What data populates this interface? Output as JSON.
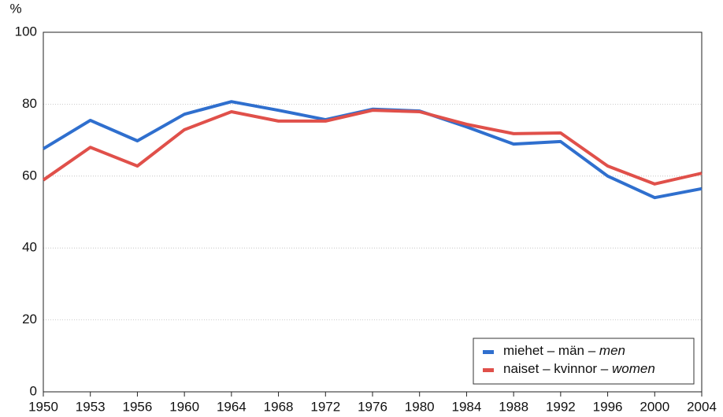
{
  "chart_data": {
    "type": "line",
    "y_label": "%",
    "categories": [
      "1950",
      "1953",
      "1956",
      "1960",
      "1964",
      "1968",
      "1972",
      "1976",
      "1980",
      "1984",
      "1988",
      "1992",
      "1996",
      "2000",
      "2004"
    ],
    "series": [
      {
        "name": "miehet – män – men",
        "color": "#2f6fce",
        "values": [
          67.6,
          75.5,
          69.8,
          77.2,
          80.7,
          78.3,
          75.7,
          78.6,
          78.1,
          73.7,
          68.9,
          69.6,
          60,
          54,
          56.5
        ]
      },
      {
        "name": "naiset – kvinnor – women",
        "color": "#e0504a",
        "values": [
          58.9,
          68,
          62.8,
          72.9,
          77.9,
          75.3,
          75.3,
          78.3,
          77.9,
          74.4,
          71.8,
          72,
          62.8,
          57.8,
          60.8
        ]
      }
    ],
    "ylim": [
      0,
      100
    ],
    "yticks": [
      0,
      20,
      40,
      60,
      80,
      100
    ],
    "grid": true,
    "legend": "lower right"
  }
}
